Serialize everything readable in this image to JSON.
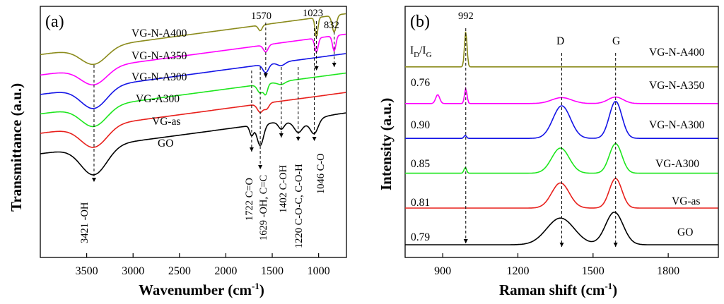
{
  "chart_data": [
    {
      "panel": "(a)",
      "type": "line",
      "title": "",
      "xlabel": "Wavenumber (cm",
      "xlabel_sup": "-1",
      "xlabel_tail": ")",
      "ylabel": "Transmittance (a.u.)",
      "xlim": [
        4000,
        700
      ],
      "x_reversed": true,
      "xticks": [
        3500,
        3000,
        2500,
        2000,
        1500,
        1000
      ],
      "xtick_labels": [
        "3500",
        "3000",
        "2500",
        "2000",
        "1500",
        "1000"
      ],
      "y_ticks_shown": false,
      "series_labels": [
        "GO",
        "VG-as",
        "VG-A300",
        "VG-N-A300",
        "VG-N-A350",
        "VG-N-A400"
      ],
      "series": [
        {
          "name": "GO",
          "color": "#000000",
          "offset": 0.0,
          "peaks": [
            [
              3421,
              1.0,
              140
            ],
            [
              1722,
              0.35,
              20
            ],
            [
              1629,
              0.75,
              35
            ],
            [
              1402,
              0.25,
              30
            ],
            [
              1220,
              0.3,
              40
            ],
            [
              1046,
              0.45,
              40
            ],
            [
              1150,
              0.2,
              120
            ]
          ]
        },
        {
          "name": "VG-as",
          "color": "#e8201c",
          "offset": 1.0,
          "peaks": [
            [
              3421,
              0.75,
              140
            ],
            [
              1629,
              0.3,
              30
            ],
            [
              1560,
              0.2,
              25
            ]
          ]
        },
        {
          "name": "VG-A300",
          "color": "#1ee61e",
          "offset": 1.95,
          "peaks": [
            [
              3421,
              0.7,
              140
            ],
            [
              1629,
              0.3,
              30
            ],
            [
              1570,
              0.35,
              20
            ],
            [
              1402,
              0.1,
              40
            ]
          ]
        },
        {
          "name": "VG-N-A300",
          "color": "#1414e6",
          "offset": 2.9,
          "peaks": [
            [
              3421,
              0.75,
              140
            ],
            [
              1570,
              0.3,
              30
            ],
            [
              1402,
              0.12,
              40
            ]
          ]
        },
        {
          "name": "VG-N-A350",
          "color": "#ff00ff",
          "offset": 3.85,
          "peaks": [
            [
              3421,
              0.6,
              140
            ],
            [
              1570,
              0.25,
              25
            ],
            [
              1023,
              0.5,
              18
            ],
            [
              832,
              0.55,
              18
            ]
          ]
        },
        {
          "name": "VG-N-A400",
          "color": "#8b8b1c",
          "offset": 4.85,
          "peaks": [
            [
              3421,
              0.6,
              140
            ],
            [
              1629,
              0.2,
              20
            ],
            [
              1023,
              0.7,
              15
            ],
            [
              832,
              0.6,
              22
            ]
          ]
        }
      ],
      "annotations": [
        {
          "text": "3421 -OH",
          "x": 3421
        },
        {
          "text": "1722  C=O",
          "x": 1722
        },
        {
          "text": "1629 -OH, C=C",
          "x": 1629
        },
        {
          "text": "1402  C-OH",
          "x": 1402
        },
        {
          "text": "1220  C-O-C, C-O-H",
          "x": 1220
        },
        {
          "text": "1046  C-O",
          "x": 1046
        },
        {
          "text": "1570",
          "x": 1570
        },
        {
          "text": "1023",
          "x": 1023
        },
        {
          "text": "832",
          "x": 832
        }
      ]
    },
    {
      "panel": "(b)",
      "type": "line",
      "title": "",
      "xlabel": "Raman shift (cm",
      "xlabel_sup": "-1",
      "xlabel_tail": ")",
      "ylabel": "Intensity (a.u.)",
      "xlim": [
        750,
        2000
      ],
      "xticks": [
        900,
        1200,
        1500,
        1800
      ],
      "xtick_labels": [
        "900",
        "1200",
        "1500",
        "1800"
      ],
      "y_ticks_shown": false,
      "ratio_header": "I",
      "ratio_header_sub_d": "D",
      "ratio_header_slash": "/I",
      "ratio_header_sub_g": "G",
      "series": [
        {
          "name": "GO",
          "color": "#000000",
          "offset": 0.0,
          "ratio": "0.79",
          "peaks": [
            [
              1370,
              0.9,
              55
            ],
            [
              1585,
              1.1,
              35
            ]
          ]
        },
        {
          "name": "VG-as",
          "color": "#e8201c",
          "offset": 1.0,
          "ratio": "0.81",
          "peaks": [
            [
              1370,
              0.85,
              35
            ],
            [
              1590,
              1.0,
              25
            ]
          ]
        },
        {
          "name": "VG-A300",
          "color": "#1ee61e",
          "offset": 1.95,
          "ratio": "0.85",
          "peaks": [
            [
              1370,
              0.85,
              35
            ],
            [
              1590,
              1.0,
              25
            ],
            [
              990,
              0.2,
              5
            ]
          ]
        },
        {
          "name": "VG-N-A300",
          "color": "#1414e6",
          "offset": 2.9,
          "ratio": "0.90",
          "peaks": [
            [
              1375,
              1.1,
              35
            ],
            [
              1590,
              1.25,
              25
            ],
            [
              990,
              0.1,
              5
            ]
          ]
        },
        {
          "name": "VG-N-A350",
          "color": "#ff00ff",
          "offset": 3.85,
          "ratio": "0.76",
          "peaks": [
            [
              992,
              0.5,
              5
            ],
            [
              880,
              0.3,
              8
            ],
            [
              1375,
              0.2,
              40
            ],
            [
              1590,
              0.22,
              30
            ]
          ]
        },
        {
          "name": "VG-N-A400",
          "color": "#8b8b1c",
          "offset": 4.85,
          "ratio": "",
          "peaks": [
            [
              992,
              1.2,
              5
            ]
          ]
        }
      ],
      "annotations": [
        {
          "text": "992",
          "x": 992
        },
        {
          "text": "D",
          "x": 1375
        },
        {
          "text": "G",
          "x": 1590
        }
      ]
    }
  ]
}
